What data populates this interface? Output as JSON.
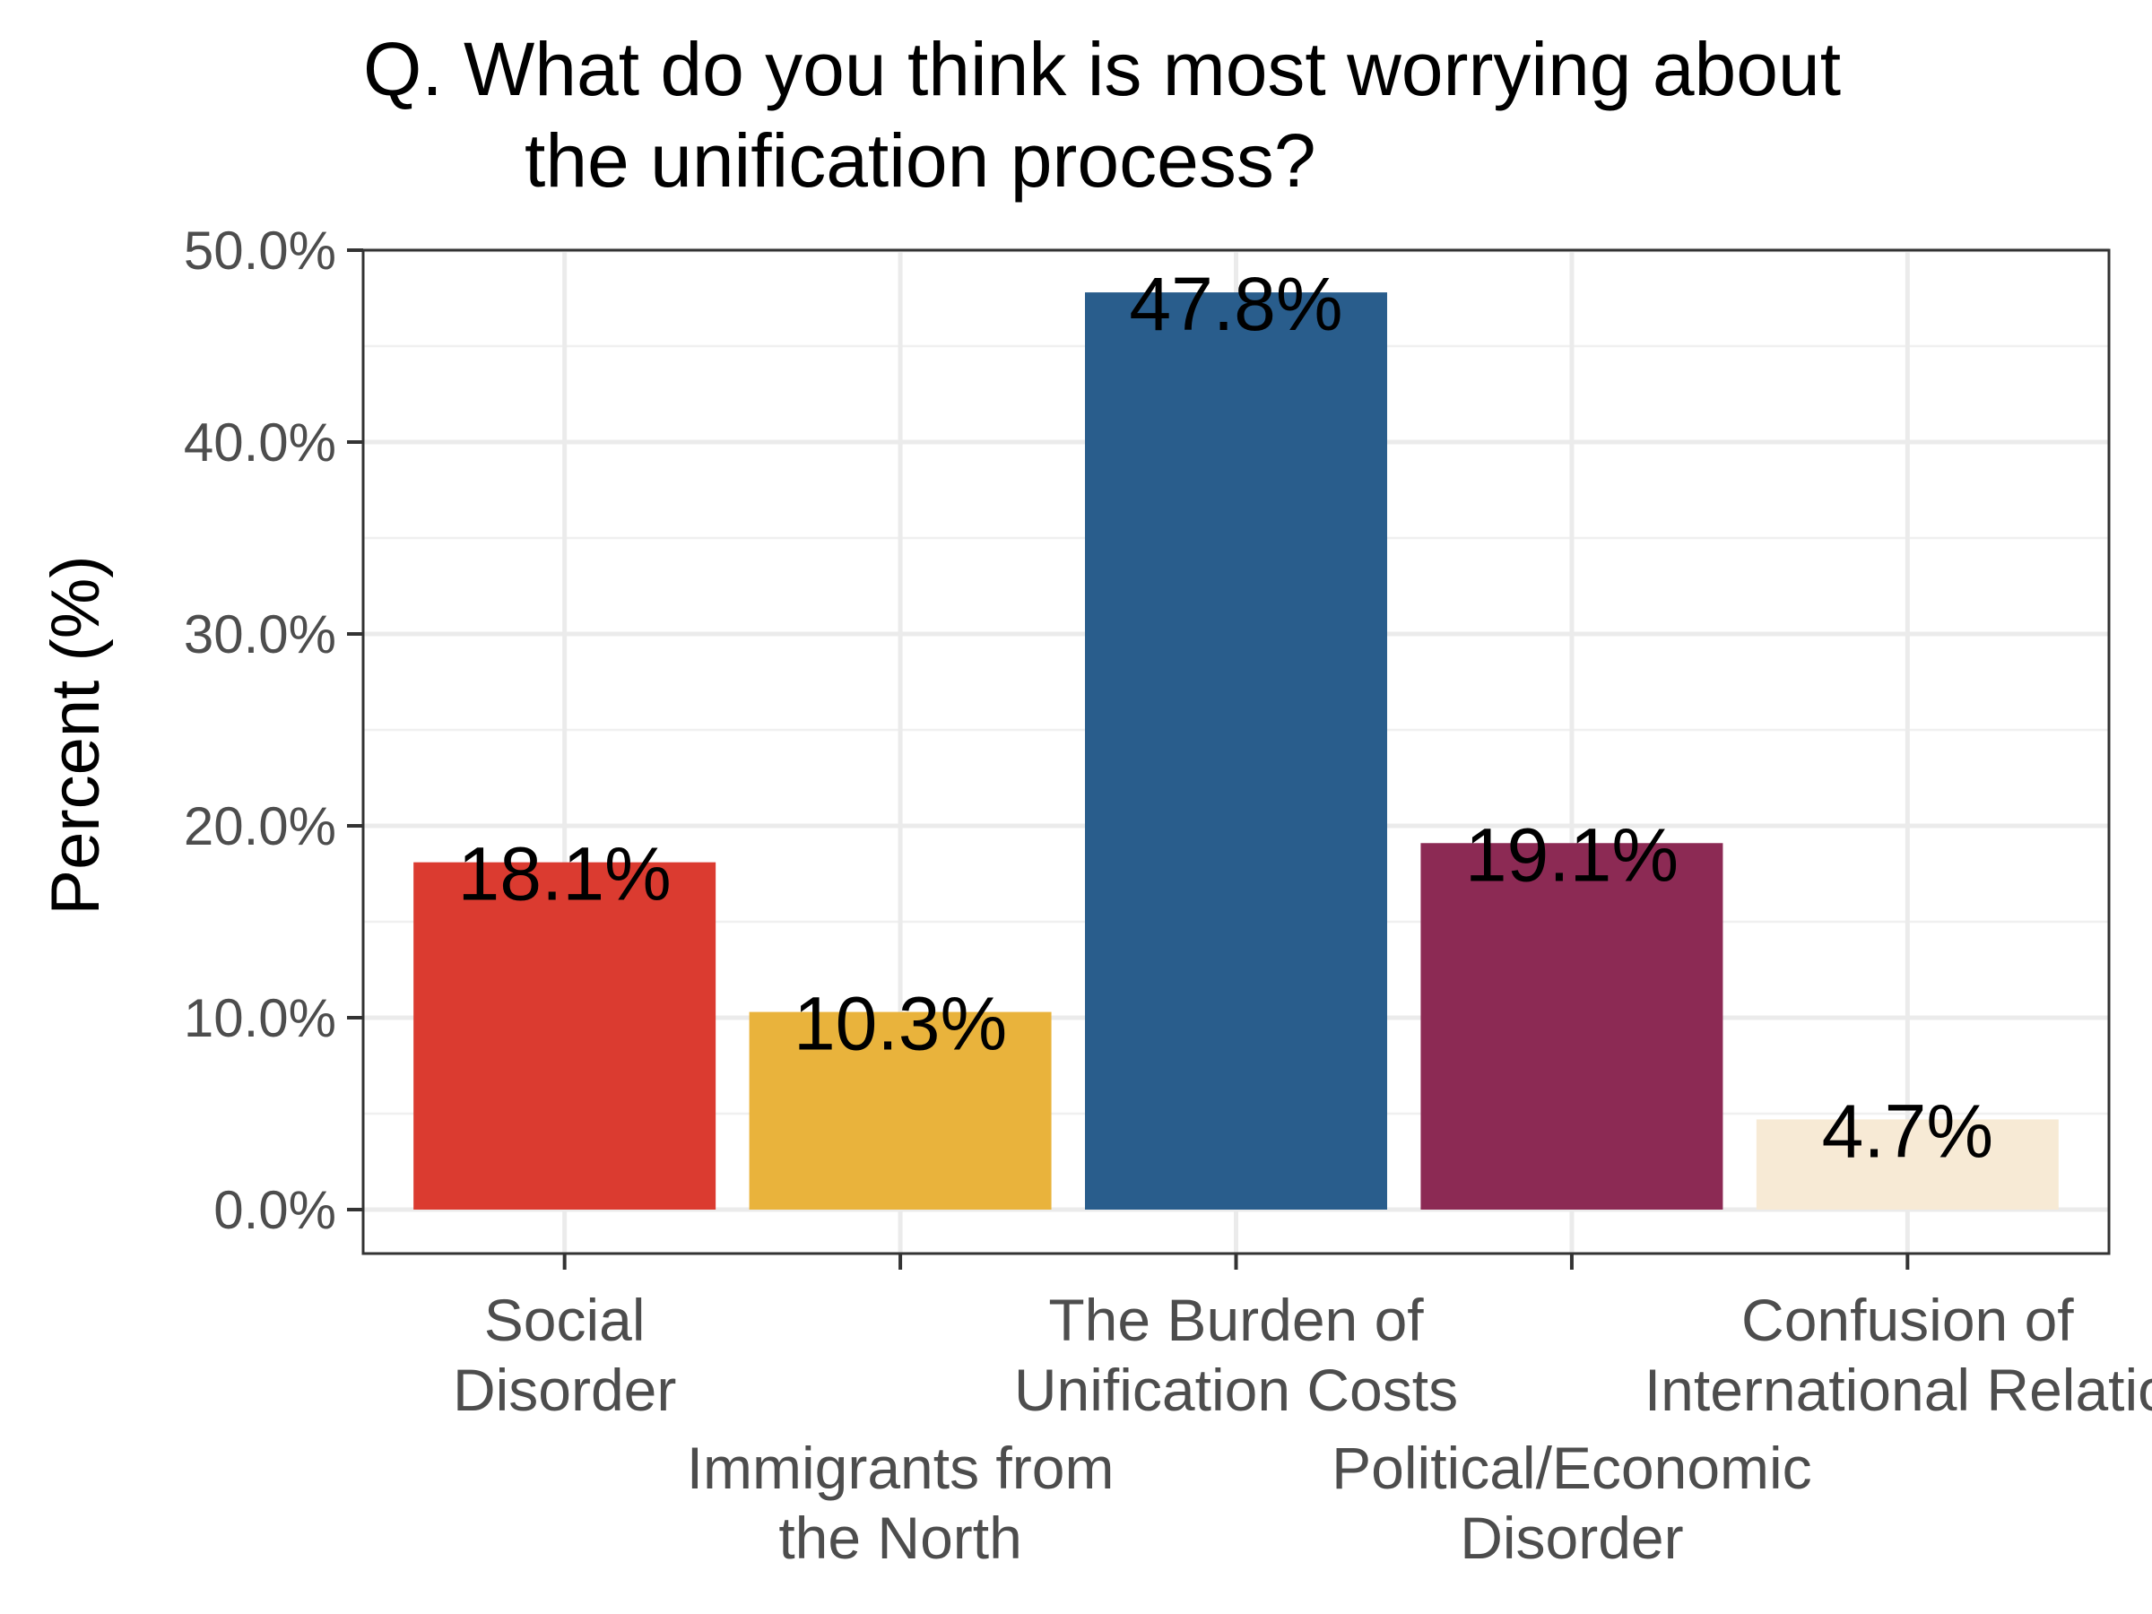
{
  "chart_data": {
    "type": "bar",
    "title_lines": [
      "Q. What do you think is most worrying about",
      "the unification process?"
    ],
    "xlabel": "",
    "ylabel": "Percent (%)",
    "ylim": [
      0,
      50
    ],
    "y_ticks": [
      0,
      10,
      20,
      30,
      40,
      50
    ],
    "y_tick_labels": [
      "0.0%",
      "10.0%",
      "20.0%",
      "30.0%",
      "40.0%",
      "50.0%"
    ],
    "grid": true,
    "legend": "none",
    "categories": [
      {
        "lines": [
          "Social",
          "Disorder"
        ],
        "row": 0
      },
      {
        "lines": [
          "Immigrants from",
          "the North"
        ],
        "row": 1
      },
      {
        "lines": [
          "The Burden of",
          "Unification Costs"
        ],
        "row": 0
      },
      {
        "lines": [
          "Political/Economic",
          "Disorder"
        ],
        "row": 1
      },
      {
        "lines": [
          "Confusion of",
          "International Relatio"
        ],
        "row": 0
      }
    ],
    "values": [
      18.1,
      10.3,
      47.8,
      19.1,
      4.7
    ],
    "data_labels": [
      "18.1%",
      "10.3%",
      "47.8%",
      "19.1%",
      "4.7%"
    ],
    "colors": [
      "#db3b30",
      "#e9b33c",
      "#295d8c",
      "#8c2a54",
      "#f7ead5"
    ]
  }
}
